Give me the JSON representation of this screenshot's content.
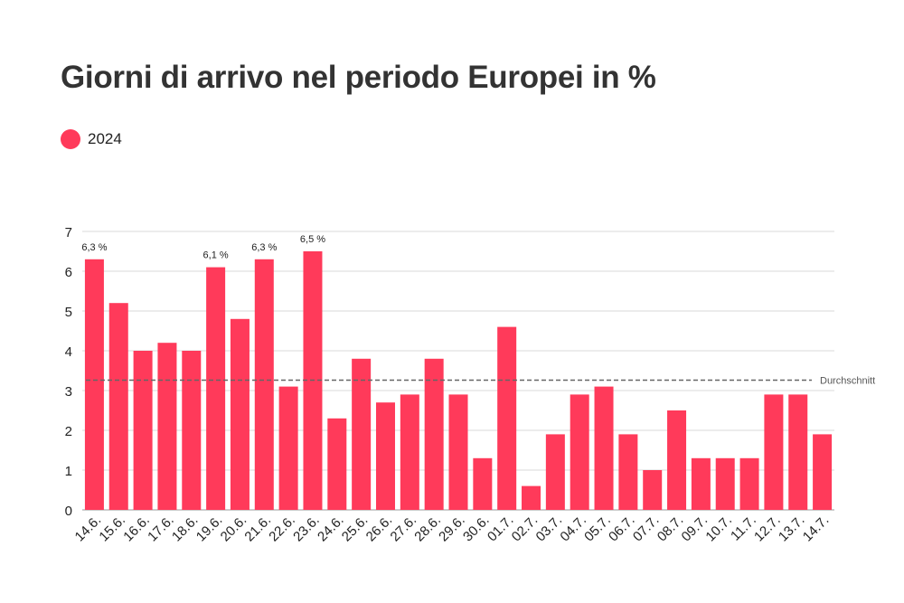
{
  "title": "Giorni di arrivo nel periodo Europei in %",
  "legend": {
    "label": "2024",
    "color": "#ff3a5a"
  },
  "average_label": "Durchschnitt",
  "chart_data": {
    "type": "bar",
    "title": "Giorni di arrivo nel periodo Europei in %",
    "xlabel": "",
    "ylabel": "",
    "ylim": [
      0,
      7
    ],
    "yticks": [
      0,
      1,
      2,
      3,
      4,
      5,
      6,
      7
    ],
    "grid": true,
    "legend_position": "top-left",
    "categories": [
      "14.6.",
      "15.6.",
      "16.6.",
      "17.6.",
      "18.6.",
      "19.6.",
      "20.6.",
      "21.6.",
      "22.6.",
      "23.6.",
      "24.6.",
      "25.6.",
      "26.6.",
      "27.6.",
      "28.6.",
      "29.6.",
      "30.6.",
      "01.7.",
      "02.7.",
      "03.7.",
      "04.7.",
      "05.7.",
      "06.7.",
      "07.7.",
      "08.7.",
      "09.7.",
      "10.7.",
      "11.7.",
      "12.7.",
      "13.7.",
      "14.7."
    ],
    "series": [
      {
        "name": "2024",
        "color": "#ff3a5a",
        "values": [
          6.3,
          5.2,
          4.0,
          4.2,
          4.0,
          6.1,
          4.8,
          6.3,
          3.1,
          6.5,
          2.3,
          3.8,
          2.7,
          2.9,
          3.8,
          2.9,
          1.3,
          4.6,
          0.6,
          1.9,
          2.9,
          3.1,
          1.9,
          1.0,
          2.5,
          1.3,
          1.3,
          1.3,
          2.9,
          2.9,
          1.9
        ]
      }
    ],
    "data_labels": [
      {
        "category": "14.6.",
        "text": "6,3 %"
      },
      {
        "category": "19.6.",
        "text": "6,1 %"
      },
      {
        "category": "21.6.",
        "text": "6,3 %"
      },
      {
        "category": "23.6.",
        "text": "6,5 %"
      }
    ],
    "average": {
      "label": "Durchschnitt",
      "value": 3.26,
      "color": "#666666"
    }
  }
}
